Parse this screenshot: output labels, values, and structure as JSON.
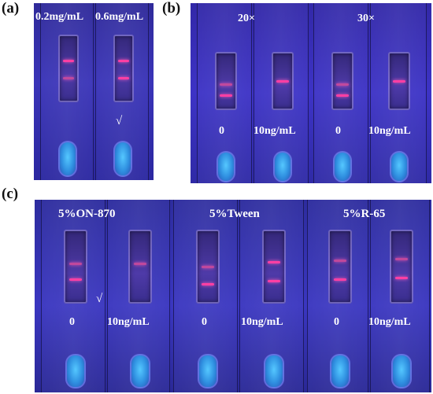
{
  "panels": {
    "a": {
      "label": "(a)",
      "columns": [
        "0.2mg/mL",
        "0.6mg/mL"
      ],
      "check_mark": "√"
    },
    "b": {
      "label": "(b)",
      "groups": [
        "20×",
        "30×"
      ],
      "strip_labels": [
        "0",
        "10ng/mL",
        "0",
        "10ng/mL"
      ]
    },
    "c": {
      "label": "(c)",
      "groups": [
        "5%ON-870",
        "5%Tween",
        "5%R-65"
      ],
      "strip_labels": [
        "0",
        "10ng/mL",
        "0",
        "10ng/mL",
        "0",
        "10ng/mL"
      ],
      "check_mark": "√"
    }
  },
  "colors": {
    "background_blue": "#3a34b8",
    "test_line_pink": "#ff3fa3",
    "sample_well_cyan": "#55c8ff"
  }
}
